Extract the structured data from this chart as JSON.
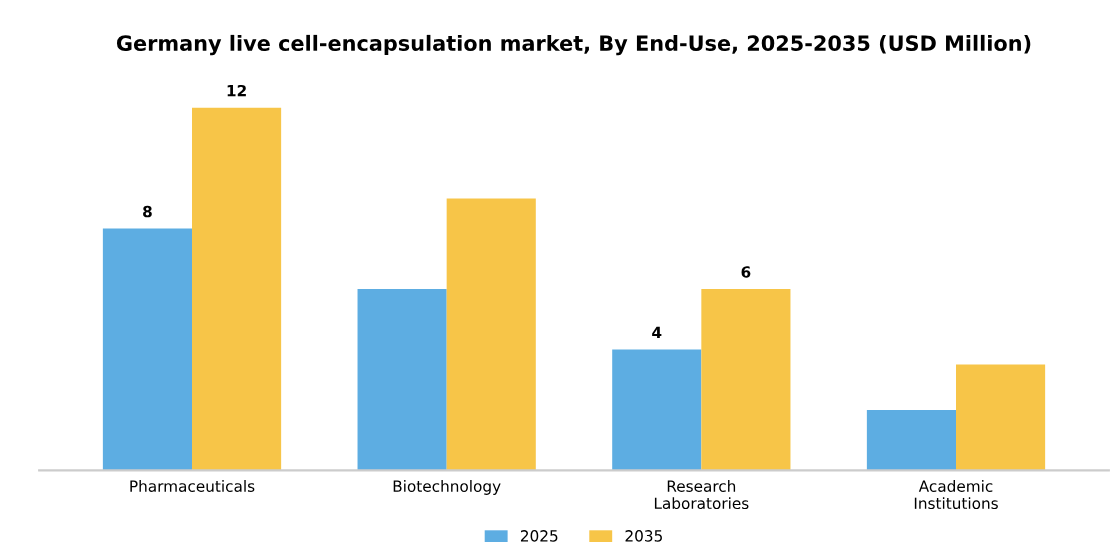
{
  "chart_data": {
    "type": "bar",
    "title": "Germany live cell-encapsulation market, By End-Use, 2025-2035 (USD Million)",
    "categories": [
      "Pharmaceuticals",
      "Biotechnology",
      "Research\nLaboratories",
      "Academic\nInstitutions"
    ],
    "series": [
      {
        "name": "2025",
        "color": "#5dade2",
        "values": [
          8,
          6,
          4,
          2
        ],
        "value_labels": [
          "8",
          null,
          "4",
          null
        ]
      },
      {
        "name": "2035",
        "color": "#f7c548",
        "values": [
          12,
          9,
          6,
          3.5
        ],
        "value_labels": [
          "12",
          null,
          "6",
          null
        ]
      }
    ],
    "tick_labels": "x",
    "legend": "bottom",
    "grid": false
  }
}
